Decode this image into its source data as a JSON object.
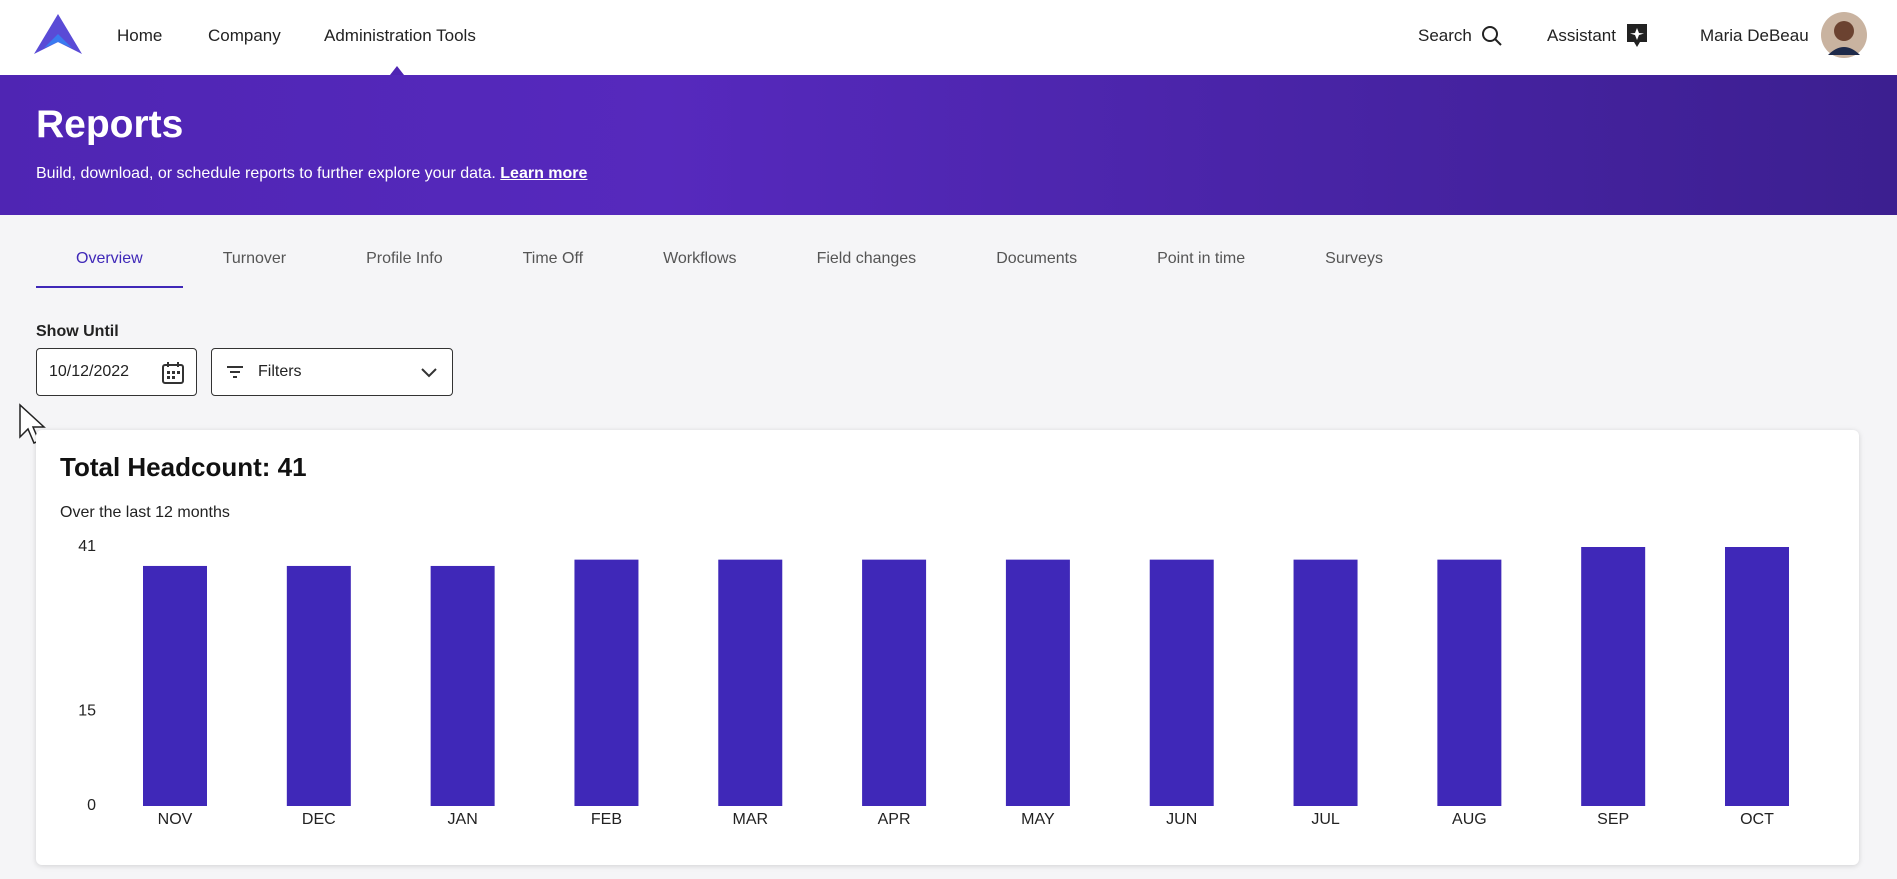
{
  "nav": {
    "items": [
      "Home",
      "Company",
      "Administration Tools"
    ],
    "search": "Search",
    "assistant": "Assistant",
    "user": "Maria DeBeau"
  },
  "banner": {
    "title": "Reports",
    "description": "Build, download, or schedule reports to further explore your data.",
    "link": "Learn more"
  },
  "tabs": [
    "Overview",
    "Turnover",
    "Profile Info",
    "Time Off",
    "Workflows",
    "Field changes",
    "Documents",
    "Point in time",
    "Surveys"
  ],
  "filters": {
    "label": "Show Until",
    "date": "10/12/2022",
    "filter_button": "Filters"
  },
  "chart_data": {
    "type": "bar",
    "title": "Total Headcount: 41",
    "subtitle": "Over the last 12 months",
    "categories": [
      "NOV",
      "DEC",
      "JAN",
      "FEB",
      "MAR",
      "APR",
      "MAY",
      "JUN",
      "JUL",
      "AUG",
      "SEP",
      "OCT"
    ],
    "values": [
      38,
      38,
      38,
      39,
      39,
      39,
      39,
      39,
      39,
      39,
      41,
      41
    ],
    "color": "#3f28b8",
    "ylim": [
      0,
      41
    ],
    "yticks": [
      0,
      15,
      41
    ],
    "grid": false
  }
}
